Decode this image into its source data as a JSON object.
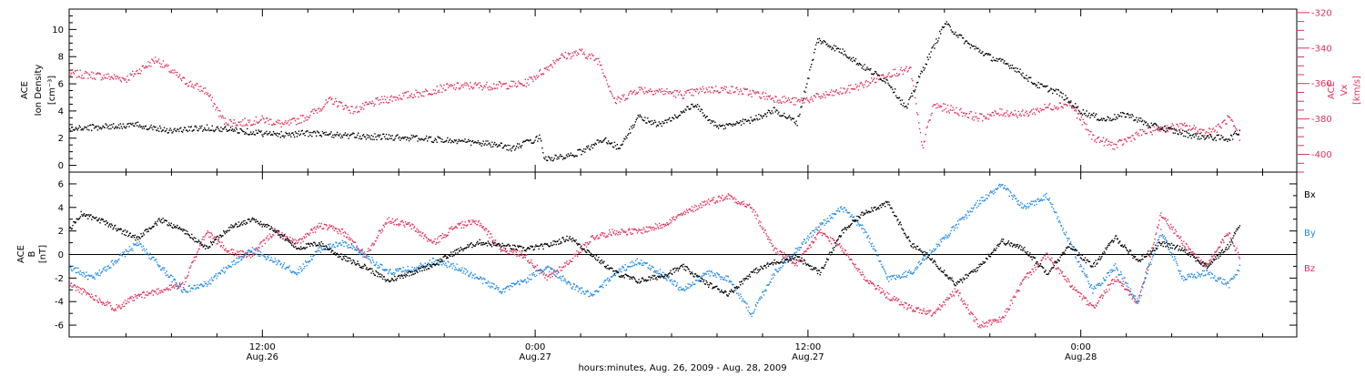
{
  "colors": {
    "black": "#000000",
    "pink": "#e0305a",
    "blue": "#1e88e5"
  },
  "xaxis": {
    "label": "hours:minutes, Aug. 26, 2009 - Aug. 28, 2009",
    "ticks": [
      {
        "time": "12:00",
        "date": "Aug.26"
      },
      {
        "time": "0:00",
        "date": "Aug.27"
      },
      {
        "time": "12:00",
        "date": "Aug.27"
      },
      {
        "time": "0:00",
        "date": "Aug.28"
      }
    ]
  },
  "chart_data": [
    {
      "type": "scatter",
      "panel": "top",
      "x_units": "hours since Aug. 26 00:00",
      "xlim": [
        3.5,
        57.5
      ],
      "ylabel_left": [
        "ACE",
        "Ion Density",
        "[cm⁻³]"
      ],
      "ylabel_right": [
        "ACE",
        "Vx",
        "[km/s]"
      ],
      "ylim_left": [
        -0.5,
        11.5
      ],
      "yticks_left": [
        0,
        2,
        4,
        6,
        8,
        10
      ],
      "ylim_right": [
        -410,
        -318
      ],
      "yticks_right": [
        -320,
        -340,
        -360,
        -380,
        -400
      ],
      "grid": false,
      "series": [
        {
          "axis": "left",
          "color": "#000000",
          "points": [
            [
              3.5,
              2.7
            ],
            [
              5,
              2.9
            ],
            [
              6.5,
              3.0
            ],
            [
              8,
              2.6
            ],
            [
              9.5,
              2.8
            ],
            [
              11,
              2.6
            ],
            [
              12.5,
              2.3
            ],
            [
              14,
              2.4
            ],
            [
              16,
              2.2
            ],
            [
              18,
              2.1
            ],
            [
              20,
              1.9
            ],
            [
              22,
              1.6
            ],
            [
              23,
              1.3
            ],
            [
              24.2,
              2.1
            ],
            [
              24.4,
              0.5
            ],
            [
              25.5,
              0.7
            ],
            [
              26.2,
              1.2
            ],
            [
              27,
              2.0
            ],
            [
              27.7,
              1.3
            ],
            [
              28.5,
              3.6
            ],
            [
              29.5,
              3.0
            ],
            [
              31,
              4.5
            ],
            [
              32,
              2.8
            ],
            [
              33.5,
              3.4
            ],
            [
              34.5,
              4.1
            ],
            [
              35.5,
              3.2
            ],
            [
              36.4,
              9.3
            ],
            [
              37.5,
              8.4
            ],
            [
              38.5,
              7.2
            ],
            [
              39.5,
              6.2
            ],
            [
              40.3,
              4.2
            ],
            [
              41,
              7.0
            ],
            [
              42,
              10.5
            ],
            [
              43,
              9.0
            ],
            [
              44,
              8.0
            ],
            [
              45,
              7.3
            ],
            [
              46,
              6.0
            ],
            [
              47,
              5.4
            ],
            [
              48,
              4.0
            ],
            [
              49,
              3.4
            ],
            [
              50,
              3.8
            ],
            [
              51,
              3.0
            ],
            [
              52,
              2.6
            ],
            [
              53,
              2.2
            ],
            [
              54.5,
              2.0
            ],
            [
              55,
              2.6
            ]
          ]
        },
        {
          "axis": "right",
          "color": "#e0305a",
          "points": [
            [
              3.5,
              -354
            ],
            [
              4.5,
              -355
            ],
            [
              6,
              -357
            ],
            [
              7.3,
              -346
            ],
            [
              8.5,
              -358
            ],
            [
              9.5,
              -364
            ],
            [
              10.3,
              -381
            ],
            [
              11,
              -382
            ],
            [
              12,
              -380
            ],
            [
              13,
              -383
            ],
            [
              14,
              -378
            ],
            [
              15,
              -369
            ],
            [
              16,
              -375
            ],
            [
              17,
              -370
            ],
            [
              18,
              -367
            ],
            [
              19,
              -365
            ],
            [
              20,
              -362
            ],
            [
              21,
              -361
            ],
            [
              22,
              -361
            ],
            [
              23.5,
              -360
            ],
            [
              24.5,
              -351
            ],
            [
              25,
              -345
            ],
            [
              26,
              -342
            ],
            [
              26.8,
              -347
            ],
            [
              27.5,
              -370
            ],
            [
              28.5,
              -363
            ],
            [
              29.5,
              -364
            ],
            [
              30.5,
              -366
            ],
            [
              31.5,
              -363
            ],
            [
              32.5,
              -363
            ],
            [
              33.5,
              -365
            ],
            [
              34.5,
              -368
            ],
            [
              35.5,
              -370
            ],
            [
              36.5,
              -367
            ],
            [
              37.5,
              -364
            ],
            [
              38.5,
              -360
            ],
            [
              39.5,
              -354
            ],
            [
              40.5,
              -352
            ],
            [
              41,
              -396
            ],
            [
              41.5,
              -372
            ],
            [
              42.5,
              -375
            ],
            [
              43.5,
              -379
            ],
            [
              44.5,
              -376
            ],
            [
              45.5,
              -377
            ],
            [
              46.5,
              -373
            ],
            [
              47.5,
              -371
            ],
            [
              48.5,
              -390
            ],
            [
              49.5,
              -395
            ],
            [
              50.5,
              -388
            ],
            [
              51.5,
              -385
            ],
            [
              52.5,
              -384
            ],
            [
              53.5,
              -387
            ],
            [
              54,
              -385
            ],
            [
              54.5,
              -379
            ],
            [
              55,
              -392
            ]
          ]
        }
      ]
    },
    {
      "type": "scatter",
      "panel": "bottom",
      "x_units": "hours since Aug. 26 00:00",
      "xlim": [
        3.5,
        57.5
      ],
      "ylabel": [
        "ACE",
        "B",
        "[nT]"
      ],
      "ylim": [
        -7,
        7
      ],
      "yticks": [
        -6,
        -4,
        -2,
        0,
        2,
        4,
        6
      ],
      "zero_line": true,
      "grid": false,
      "series": [
        {
          "name": "Bx",
          "color": "#000000",
          "points": [
            [
              3.5,
              2.2
            ],
            [
              4,
              3.5
            ],
            [
              5,
              2.8
            ],
            [
              6.5,
              1.4
            ],
            [
              7.5,
              3.0
            ],
            [
              8.5,
              2.1
            ],
            [
              9.5,
              0.6
            ],
            [
              10.5,
              2.3
            ],
            [
              11.5,
              3.0
            ],
            [
              12.5,
              2.2
            ],
            [
              13.5,
              0.6
            ],
            [
              14.5,
              1.0
            ],
            [
              15.5,
              -0.2
            ],
            [
              16.5,
              -1.0
            ],
            [
              17.5,
              -2.2
            ],
            [
              18.5,
              -1.5
            ],
            [
              19.5,
              -0.8
            ],
            [
              20.5,
              0.3
            ],
            [
              21.5,
              1.1
            ],
            [
              22.5,
              0.8
            ],
            [
              23.5,
              0.5
            ],
            [
              24.5,
              0.8
            ],
            [
              25.5,
              1.5
            ],
            [
              26.5,
              0.0
            ],
            [
              27.5,
              -1.5
            ],
            [
              28.5,
              -2.2
            ],
            [
              29.5,
              -1.8
            ],
            [
              30.5,
              -1.0
            ],
            [
              31.5,
              -2.4
            ],
            [
              32.5,
              -3.3
            ],
            [
              33.5,
              -1.5
            ],
            [
              34.5,
              -0.6
            ],
            [
              35.5,
              -0.2
            ],
            [
              36.5,
              -1.5
            ],
            [
              37.5,
              2.0
            ],
            [
              38.5,
              3.7
            ],
            [
              39.5,
              4.4
            ],
            [
              40.5,
              1.0
            ],
            [
              41.5,
              -0.5
            ],
            [
              42.5,
              -2.5
            ],
            [
              43.5,
              -1.0
            ],
            [
              44.5,
              1.2
            ],
            [
              45.5,
              0.5
            ],
            [
              46.5,
              -1.5
            ],
            [
              47.5,
              0.8
            ],
            [
              48.5,
              -1.0
            ],
            [
              49.5,
              1.5
            ],
            [
              50.5,
              -0.5
            ],
            [
              51.5,
              1.0
            ],
            [
              52.5,
              0.5
            ],
            [
              53.5,
              -1.0
            ],
            [
              54.5,
              0.8
            ],
            [
              55,
              2.8
            ]
          ]
        },
        {
          "name": "By",
          "color": "#1e88e5",
          "points": [
            [
              3.5,
              -1.0
            ],
            [
              4.5,
              -2.0
            ],
            [
              5.5,
              -0.5
            ],
            [
              6.5,
              1.0
            ],
            [
              7.5,
              -1.0
            ],
            [
              8.5,
              -3.0
            ],
            [
              9.5,
              -2.5
            ],
            [
              10.5,
              -1.0
            ],
            [
              11.5,
              0.5
            ],
            [
              12.5,
              -0.5
            ],
            [
              13.5,
              -1.5
            ],
            [
              14.5,
              0.5
            ],
            [
              15.5,
              1.0
            ],
            [
              16.5,
              0.0
            ],
            [
              17.5,
              -1.5
            ],
            [
              18.5,
              -1.2
            ],
            [
              19.5,
              -0.5
            ],
            [
              20.5,
              -1.0
            ],
            [
              21.5,
              -2.0
            ],
            [
              22.5,
              -3.0
            ],
            [
              23.5,
              -2.2
            ],
            [
              24.5,
              -1.0
            ],
            [
              25.5,
              -2.5
            ],
            [
              26.5,
              -3.5
            ],
            [
              27.5,
              -1.5
            ],
            [
              28.5,
              -0.5
            ],
            [
              29.5,
              -1.5
            ],
            [
              30.5,
              -3.0
            ],
            [
              31.5,
              -1.5
            ],
            [
              32.5,
              -2.0
            ],
            [
              33.5,
              -5.0
            ],
            [
              34.5,
              -1.5
            ],
            [
              35.5,
              0.5
            ],
            [
              36.5,
              2.5
            ],
            [
              37.5,
              4.0
            ],
            [
              38.5,
              2.0
            ],
            [
              39.5,
              -2.0
            ],
            [
              40.5,
              -1.5
            ],
            [
              41.5,
              0.5
            ],
            [
              42.5,
              2.5
            ],
            [
              43.5,
              4.5
            ],
            [
              44.5,
              5.9
            ],
            [
              45.5,
              4.0
            ],
            [
              46.5,
              5.0
            ],
            [
              47.5,
              1.0
            ],
            [
              48.5,
              -3.0
            ],
            [
              49.5,
              -1.0
            ],
            [
              50.5,
              -4.0
            ],
            [
              51.5,
              2.0
            ],
            [
              52.5,
              -2.0
            ],
            [
              53.5,
              -1.5
            ],
            [
              54.5,
              -2.5
            ],
            [
              55,
              -1.0
            ]
          ]
        },
        {
          "name": "Bz",
          "color": "#e0305a",
          "points": [
            [
              3.5,
              -2.5
            ],
            [
              4.5,
              -3.5
            ],
            [
              5.5,
              -4.5
            ],
            [
              6.5,
              -3.5
            ],
            [
              7.5,
              -3.0
            ],
            [
              8.5,
              -2.5
            ],
            [
              9.5,
              2.0
            ],
            [
              10.5,
              0.3
            ],
            [
              11.5,
              0.0
            ],
            [
              12.5,
              2.0
            ],
            [
              13.5,
              1.0
            ],
            [
              14.5,
              2.5
            ],
            [
              15.5,
              2.0
            ],
            [
              16.5,
              0.0
            ],
            [
              17.5,
              3.0
            ],
            [
              18.5,
              2.5
            ],
            [
              19.5,
              1.0
            ],
            [
              20.5,
              2.5
            ],
            [
              21.5,
              2.8
            ],
            [
              22.5,
              0.5
            ],
            [
              23.5,
              0.0
            ],
            [
              24.5,
              -2.0
            ],
            [
              25.5,
              -0.5
            ],
            [
              26.5,
              1.5
            ],
            [
              27.5,
              2.0
            ],
            [
              28.5,
              2.0
            ],
            [
              29.5,
              2.5
            ],
            [
              30.5,
              3.5
            ],
            [
              31.5,
              4.5
            ],
            [
              32.5,
              5.0
            ],
            [
              33.5,
              4.0
            ],
            [
              34.5,
              0.5
            ],
            [
              35.5,
              -0.8
            ],
            [
              36.5,
              2.0
            ],
            [
              37.5,
              0.5
            ],
            [
              38.5,
              -2.0
            ],
            [
              39.5,
              -3.5
            ],
            [
              40.5,
              -4.5
            ],
            [
              41.5,
              -5.0
            ],
            [
              42.5,
              -3.0
            ],
            [
              43.5,
              -6.0
            ],
            [
              44.5,
              -5.5
            ],
            [
              45.5,
              -2.0
            ],
            [
              46.5,
              0.0
            ],
            [
              47.5,
              -2.5
            ],
            [
              48.5,
              -4.5
            ],
            [
              49.5,
              -2.0
            ],
            [
              50.5,
              -4.0
            ],
            [
              51.5,
              3.5
            ],
            [
              52.5,
              1.0
            ],
            [
              53.5,
              -1.0
            ],
            [
              54.5,
              2.0
            ],
            [
              55,
              -0.5
            ]
          ]
        }
      ]
    }
  ]
}
